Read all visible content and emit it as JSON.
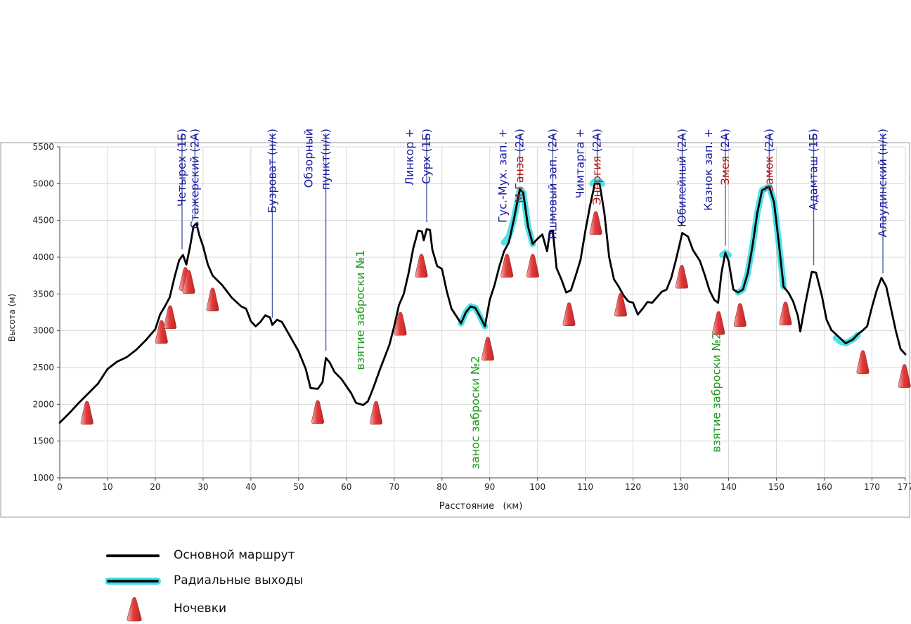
{
  "chart_data": {
    "type": "line",
    "xlabel": "Расстояние   (км)",
    "ylabel": "Высота (м)",
    "xlim": [
      0,
      177
    ],
    "ylim": [
      1000,
      5500
    ],
    "x_ticks": [
      0,
      10,
      20,
      30,
      40,
      50,
      60,
      70,
      80,
      90,
      100,
      110,
      120,
      130,
      140,
      150,
      160,
      170,
      177
    ],
    "y_ticks": [
      1000,
      1500,
      2000,
      2500,
      3000,
      3500,
      4000,
      4500,
      5000,
      5500
    ],
    "grid": true,
    "colors": {
      "route": "#000000",
      "radial_glow": "#3be0e6",
      "camp": "#e03a3a",
      "pass_label": "#1a1aa0",
      "pass_label_red": "#b01818",
      "cache_label": "#1e9a1e",
      "pointer_line": "#5060a8",
      "grid": "#d8d8d8"
    },
    "series": [
      {
        "name": "Основной маршрут",
        "points": [
          [
            0,
            1750
          ],
          [
            2,
            1880
          ],
          [
            4,
            2020
          ],
          [
            6,
            2150
          ],
          [
            8,
            2280
          ],
          [
            10,
            2480
          ],
          [
            12,
            2580
          ],
          [
            14,
            2640
          ],
          [
            16,
            2740
          ],
          [
            18,
            2870
          ],
          [
            20,
            3020
          ],
          [
            21,
            3220
          ],
          [
            22,
            3330
          ],
          [
            23,
            3450
          ],
          [
            24,
            3720
          ],
          [
            25,
            3960
          ],
          [
            25.8,
            4030
          ],
          [
            26.5,
            3900
          ],
          [
            27.3,
            4150
          ],
          [
            28,
            4420
          ],
          [
            28.6,
            4460
          ],
          [
            29.2,
            4300
          ],
          [
            30,
            4150
          ],
          [
            31,
            3900
          ],
          [
            32,
            3750
          ],
          [
            34,
            3620
          ],
          [
            36,
            3450
          ],
          [
            38,
            3330
          ],
          [
            39,
            3300
          ],
          [
            40,
            3130
          ],
          [
            41,
            3060
          ],
          [
            42,
            3120
          ],
          [
            43,
            3210
          ],
          [
            44,
            3180
          ],
          [
            44.5,
            3080
          ],
          [
            45.5,
            3150
          ],
          [
            46.5,
            3120
          ],
          [
            48,
            2950
          ],
          [
            50,
            2720
          ],
          [
            51.5,
            2480
          ],
          [
            52.5,
            2220
          ],
          [
            54,
            2210
          ],
          [
            55,
            2300
          ],
          [
            55.7,
            2630
          ],
          [
            56.5,
            2570
          ],
          [
            57.5,
            2440
          ],
          [
            59,
            2340
          ],
          [
            61,
            2150
          ],
          [
            62,
            2020
          ],
          [
            63.5,
            1990
          ],
          [
            64.5,
            2040
          ],
          [
            65.5,
            2200
          ],
          [
            67,
            2470
          ],
          [
            69,
            2810
          ],
          [
            70,
            3060
          ],
          [
            71,
            3350
          ],
          [
            72,
            3500
          ],
          [
            73,
            3780
          ],
          [
            74,
            4120
          ],
          [
            75,
            4360
          ],
          [
            75.8,
            4350
          ],
          [
            76.2,
            4230
          ],
          [
            76.8,
            4380
          ],
          [
            77.5,
            4370
          ],
          [
            78,
            4100
          ],
          [
            79,
            3880
          ],
          [
            80,
            3840
          ],
          [
            81,
            3540
          ],
          [
            82,
            3300
          ],
          [
            83,
            3200
          ],
          [
            84,
            3100
          ],
          [
            85,
            3250
          ],
          [
            86,
            3330
          ],
          [
            87,
            3310
          ],
          [
            88,
            3190
          ],
          [
            89,
            3060
          ],
          [
            90,
            3420
          ],
          [
            91,
            3620
          ],
          [
            92,
            3870
          ],
          [
            93,
            4080
          ],
          [
            94,
            4200
          ],
          [
            95,
            4500
          ],
          [
            96.3,
            4920
          ],
          [
            97,
            4880
          ],
          [
            98,
            4420
          ],
          [
            99,
            4180
          ],
          [
            100,
            4250
          ],
          [
            101,
            4310
          ],
          [
            102,
            4080
          ],
          [
            102.6,
            4350
          ],
          [
            103.2,
            4360
          ],
          [
            104,
            3850
          ],
          [
            105,
            3700
          ],
          [
            106,
            3520
          ],
          [
            107,
            3550
          ],
          [
            108,
            3750
          ],
          [
            109,
            3960
          ],
          [
            110,
            4350
          ],
          [
            111,
            4700
          ],
          [
            112,
            5000
          ],
          [
            113,
            5000
          ],
          [
            114,
            4600
          ],
          [
            115,
            4000
          ],
          [
            116,
            3700
          ],
          [
            117,
            3600
          ],
          [
            118,
            3480
          ],
          [
            119,
            3400
          ],
          [
            120,
            3380
          ],
          [
            121,
            3220
          ],
          [
            122,
            3300
          ],
          [
            123,
            3390
          ],
          [
            124,
            3380
          ],
          [
            126,
            3530
          ],
          [
            127,
            3560
          ],
          [
            128,
            3720
          ],
          [
            129,
            3970
          ],
          [
            130.3,
            4330
          ],
          [
            131.5,
            4280
          ],
          [
            132.5,
            4100
          ],
          [
            134,
            3950
          ],
          [
            135,
            3760
          ],
          [
            136,
            3550
          ],
          [
            137,
            3420
          ],
          [
            137.8,
            3380
          ],
          [
            138.5,
            3780
          ],
          [
            139.3,
            4060
          ],
          [
            140,
            3950
          ],
          [
            141,
            3560
          ],
          [
            142,
            3520
          ],
          [
            143,
            3560
          ],
          [
            144,
            3780
          ],
          [
            145,
            4150
          ],
          [
            146,
            4600
          ],
          [
            147,
            4910
          ],
          [
            148.5,
            4960
          ],
          [
            149.5,
            4750
          ],
          [
            150.5,
            4200
          ],
          [
            151.5,
            3600
          ],
          [
            152.5,
            3520
          ],
          [
            153.5,
            3400
          ],
          [
            154.5,
            3200
          ],
          [
            155,
            2990
          ],
          [
            156,
            3350
          ],
          [
            157.4,
            3800
          ],
          [
            158.3,
            3790
          ],
          [
            159.5,
            3480
          ],
          [
            160.5,
            3150
          ],
          [
            161.5,
            3010
          ],
          [
            163,
            2920
          ],
          [
            164.5,
            2830
          ],
          [
            166,
            2880
          ],
          [
            167,
            2950
          ],
          [
            168,
            3000
          ],
          [
            169,
            3060
          ],
          [
            170,
            3320
          ],
          [
            171,
            3550
          ],
          [
            172,
            3720
          ],
          [
            173,
            3600
          ],
          [
            174,
            3300
          ],
          [
            175,
            3000
          ],
          [
            176,
            2750
          ],
          [
            177,
            2680
          ]
        ]
      },
      {
        "name": "Радиальные выходы",
        "segments": [
          [
            [
              84,
              3100
            ],
            [
              85,
              3250
            ],
            [
              86,
              3330
            ],
            [
              87,
              3310
            ],
            [
              88,
              3190
            ],
            [
              89,
              3060
            ]
          ],
          [
            [
              93,
              4200
            ],
            [
              94,
              4280
            ],
            [
              95,
              4500
            ],
            [
              96.3,
              4920
            ],
            [
              97,
              4880
            ],
            [
              98,
              4420
            ],
            [
              99,
              4180
            ]
          ],
          [
            [
              111.5,
              5000
            ],
            [
              112,
              5030
            ],
            [
              113,
              5030
            ],
            [
              113.5,
              5000
            ]
          ],
          [
            [
              138.7,
              4030
            ],
            [
              139.3,
              4060
            ],
            [
              140,
              4030
            ]
          ],
          [
            [
              142,
              3520
            ],
            [
              143,
              3560
            ],
            [
              144,
              3780
            ],
            [
              145,
              4150
            ],
            [
              146,
              4600
            ],
            [
              147,
              4910
            ],
            [
              148.5,
              4960
            ],
            [
              149.5,
              4750
            ],
            [
              150.5,
              4200
            ],
            [
              151.5,
              3600
            ]
          ],
          [
            [
              162.5,
              2900
            ],
            [
              163.5,
              2850
            ],
            [
              164.5,
              2830
            ],
            [
              166,
              2880
            ],
            [
              167,
              2940
            ]
          ]
        ]
      }
    ],
    "camps": [
      [
        5.7,
        1880
      ],
      [
        21.3,
        2980
      ],
      [
        23.1,
        3180
      ],
      [
        26.3,
        3700
      ],
      [
        27,
        3660
      ],
      [
        32,
        3420
      ],
      [
        54,
        1890
      ],
      [
        66.2,
        1880
      ],
      [
        71.3,
        3090
      ],
      [
        75.7,
        3880
      ],
      [
        89.6,
        2750
      ],
      [
        93.6,
        3880
      ],
      [
        99,
        3880
      ],
      [
        106.6,
        3220
      ],
      [
        112.2,
        4460
      ],
      [
        117.4,
        3350
      ],
      [
        130.2,
        3730
      ],
      [
        137.9,
        3100
      ],
      [
        142.4,
        3210
      ],
      [
        151.9,
        3230
      ],
      [
        168.1,
        2570
      ],
      [
        176.8,
        2380
      ]
    ],
    "passes": [
      {
        "x": 25.6,
        "lines": [
          {
            "text": "Четырех (1Б)",
            "color": "blue"
          }
        ]
      },
      {
        "x": 28.3,
        "lines": [
          {
            "text": "Стажерский (2А)",
            "color": "blue"
          }
        ]
      },
      {
        "x": 44.5,
        "lines": [
          {
            "text": "Бузроват (н/к)",
            "color": "blue"
          }
        ]
      },
      {
        "x": 55.7,
        "lines": [
          {
            "text": "Обзорный",
            "color": "blue"
          },
          {
            "text": "пункт(н/к)",
            "color": "blue"
          }
        ]
      },
      {
        "x": 76.8,
        "lines": [
          {
            "text": "Линкор +",
            "color": "blue"
          },
          {
            "text": "Сурх (1Б)",
            "color": "blue"
          }
        ]
      },
      {
        "x": 96.3,
        "lines": [
          {
            "text": "Гус.-Мух. зап. +",
            "color": "blue"
          },
          {
            "text": "М.Ганза (2А)",
            "color": "mixed",
            "red_part": "М.Ганза",
            "blue_part": " (2А)"
          }
        ]
      },
      {
        "x": 103.2,
        "lines": [
          {
            "text": "Яшмовый зап. (2А)",
            "color": "blue"
          }
        ]
      },
      {
        "x": 112.5,
        "lines": [
          {
            "text": "Чимтарга +",
            "color": "blue"
          },
          {
            "text": "Энергия (2А)",
            "color": "mixed",
            "red_part": "Энергия",
            "blue_part": " (2А)"
          }
        ]
      },
      {
        "x": 130.3,
        "lines": [
          {
            "text": "Юбилейный (2А)",
            "color": "blue"
          }
        ]
      },
      {
        "x": 139.3,
        "lines": [
          {
            "text": "Казнок зап. +",
            "color": "blue"
          },
          {
            "text": "Змея (2А)",
            "color": "mixed",
            "red_part": "Змея",
            "blue_part": " (2А)"
          }
        ]
      },
      {
        "x": 148.5,
        "lines": [
          {
            "text": "Замок (2А)",
            "color": "mixed",
            "red_part": "Замок",
            "blue_part": " (2А)"
          }
        ]
      },
      {
        "x": 157.8,
        "lines": [
          {
            "text": "Адамташ (1Б)",
            "color": "blue"
          }
        ]
      },
      {
        "x": 172.3,
        "lines": [
          {
            "text": "Алаудинский (н/к)",
            "color": "blue"
          }
        ]
      }
    ],
    "annotations": [
      {
        "text": "взятие заброски №1",
        "x": 63,
        "y_top": 4100
      },
      {
        "text": "занос заброски №2",
        "x": 87,
        "y_top": 2660
      },
      {
        "text": "взятие заброски №2",
        "x": 137.5,
        "y_top": 2980
      }
    ],
    "legend": [
      {
        "label": "Основной маршрут",
        "kind": "line"
      },
      {
        "label": "Радиальные выходы",
        "kind": "glow-line"
      },
      {
        "label": "Ночевки",
        "kind": "camp"
      }
    ]
  }
}
